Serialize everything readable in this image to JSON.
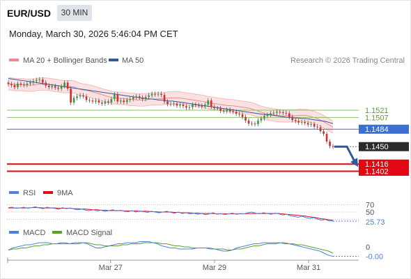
{
  "header": {
    "symbol": "EUR/USD",
    "timeframe": "30 MIN",
    "datetime": "Monday, March 30, 2026 5:46:04 PM CET"
  },
  "colors": {
    "candle_up": "#2f9e44",
    "candle_down": "#d32f2f",
    "ma20_band": "#f08a8a",
    "band_fill": "#fbe2e2",
    "ma50": "#2e5a9c",
    "resistance": "#8fc06a",
    "pivot": "#3c6fd6",
    "support": "#e30613",
    "last_price_bg": "#2b2b2b",
    "rsi": "#4f7fdc",
    "rsi_ma": "#e30613",
    "macd": "#4f7fdc",
    "macd_signal": "#5aa02c",
    "arrow": "#2e5a9c"
  },
  "chart_data": [
    {
      "type": "candlestick",
      "panel": "price",
      "legend": [
        "MA 20 + Bollinger Bands",
        "MA 50"
      ],
      "credit": "Research © 2026 Trading Central",
      "y_range": [
        1.1385,
        1.16
      ],
      "levels": [
        {
          "value": 1.1521,
          "label": "1.1521",
          "kind": "resistance"
        },
        {
          "value": 1.1507,
          "label": "1.1507",
          "kind": "resistance"
        },
        {
          "value": 1.1484,
          "label": "1.1484",
          "kind": "pivot"
        },
        {
          "value": 1.1416,
          "label": "1.1416",
          "kind": "support"
        },
        {
          "value": 1.1402,
          "label": "1.1402",
          "kind": "support"
        }
      ],
      "last_price": {
        "value": 1.145,
        "label": "1.1450"
      },
      "forecast_target": 1.1416,
      "close": [
        1.1572,
        1.157,
        1.1566,
        1.1573,
        1.1571,
        1.157,
        1.1573,
        1.1575,
        1.1578,
        1.158,
        1.1581,
        1.1575,
        1.1569,
        1.1566,
        1.1568,
        1.1565,
        1.1563,
        1.1568,
        1.1575,
        1.1563,
        1.1536,
        1.1545,
        1.1548,
        1.155,
        1.1548,
        1.1541,
        1.154,
        1.1538,
        1.154,
        1.1536,
        1.1534,
        1.1538,
        1.1536,
        1.1543,
        1.1552,
        1.1538,
        1.154,
        1.1537,
        1.1541,
        1.1543,
        1.1546,
        1.1548,
        1.1546,
        1.1543,
        1.1547,
        1.155,
        1.1553,
        1.1552,
        1.1553,
        1.1551,
        1.1538,
        1.1533,
        1.1533,
        1.1534,
        1.153,
        1.1532,
        1.1529,
        1.1526,
        1.1527,
        1.1532,
        1.1531,
        1.153,
        1.1528,
        1.1532,
        1.154,
        1.1528,
        1.1525,
        1.1525,
        1.152,
        1.1519,
        1.1522,
        1.1519,
        1.1518,
        1.1514,
        1.1513,
        1.1508,
        1.1501,
        1.1495,
        1.1495,
        1.1494,
        1.1501,
        1.1505,
        1.151,
        1.1512,
        1.1515,
        1.1516,
        1.1518,
        1.1517,
        1.1516,
        1.1515,
        1.1508,
        1.1502,
        1.15,
        1.1497,
        1.1498,
        1.1496,
        1.1493,
        1.1494,
        1.1489,
        1.1488,
        1.148,
        1.1475,
        1.146,
        1.1451,
        1.145
      ],
      "ma20": [
        1.1573,
        1.1572,
        1.1571,
        1.1571,
        1.1571,
        1.157,
        1.157,
        1.157,
        1.1571,
        1.1572,
        1.1572,
        1.1572,
        1.1571,
        1.157,
        1.1569,
        1.1568,
        1.1567,
        1.1567,
        1.1567,
        1.1566,
        1.1563,
        1.1561,
        1.156,
        1.1559,
        1.1557,
        1.1555,
        1.1553,
        1.1551,
        1.1549,
        1.1547,
        1.1545,
        1.1545,
        1.1544,
        1.1544,
        1.1543,
        1.1542,
        1.1542,
        1.1541,
        1.1541,
        1.1541,
        1.1542,
        1.1543,
        1.1543,
        1.1543,
        1.1544,
        1.1544,
        1.1545,
        1.1545,
        1.1545,
        1.1545,
        1.1544,
        1.1543,
        1.1542,
        1.1541,
        1.154,
        1.1539,
        1.1538,
        1.1536,
        1.1535,
        1.1534,
        1.1533,
        1.1532,
        1.1531,
        1.153,
        1.153,
        1.1529,
        1.1528,
        1.1527,
        1.1526,
        1.1525,
        1.1523,
        1.1521,
        1.1518,
        1.1516,
        1.1514,
        1.1513,
        1.1512,
        1.1511,
        1.151,
        1.151,
        1.151,
        1.151,
        1.151,
        1.1511,
        1.1511,
        1.1511,
        1.151,
        1.1508,
        1.1506,
        1.1503,
        1.15,
        1.1496,
        1.1492,
        1.1488
      ],
      "bb_width": 0.0012,
      "ma50": [
        1.1583,
        1.1582,
        1.1581,
        1.158,
        1.1579,
        1.1578,
        1.1577,
        1.1576,
        1.1575,
        1.1574,
        1.1573,
        1.1572,
        1.1571,
        1.157,
        1.1569,
        1.1568,
        1.1567,
        1.1566,
        1.1565,
        1.1564,
        1.1563,
        1.1562,
        1.1561,
        1.156,
        1.1559,
        1.1558,
        1.1557,
        1.1556,
        1.1555,
        1.1554,
        1.1553,
        1.1552,
        1.1551,
        1.155,
        1.1549,
        1.1548,
        1.1547,
        1.1546,
        1.1545,
        1.1544,
        1.1543,
        1.1543,
        1.1542,
        1.1541,
        1.1541,
        1.154,
        1.1539,
        1.1539,
        1.1538,
        1.1537,
        1.1536,
        1.1535,
        1.1534,
        1.1533,
        1.1532,
        1.1531,
        1.153,
        1.1529,
        1.1528,
        1.1527,
        1.1526,
        1.1525,
        1.1524,
        1.1523,
        1.1522,
        1.1521,
        1.152,
        1.1519,
        1.1518,
        1.1517,
        1.1516,
        1.1515,
        1.1514,
        1.1513,
        1.1512,
        1.1512,
        1.1511,
        1.151,
        1.1509,
        1.1508,
        1.1507,
        1.1507,
        1.1506,
        1.1506,
        1.1505,
        1.1505,
        1.1504,
        1.1503,
        1.1502,
        1.1501,
        1.15,
        1.1499,
        1.1497,
        1.1495
      ]
    },
    {
      "type": "line",
      "panel": "rsi",
      "legend": [
        "RSI",
        "9MA"
      ],
      "y_range": [
        20,
        80
      ],
      "y_ticks": [
        {
          "value": 70,
          "label": "70"
        },
        {
          "value": 50,
          "label": "50"
        },
        {
          "value": 30,
          "label": ""
        }
      ],
      "last_value": {
        "value": 25.73,
        "label": "25.73"
      },
      "rsi": [
        62,
        63,
        60,
        61,
        63,
        60,
        62,
        64,
        61,
        59,
        63,
        61,
        60,
        57,
        62,
        59,
        61,
        58,
        56,
        58,
        55,
        54,
        56,
        53,
        55,
        52,
        54,
        56,
        53,
        55,
        52,
        51,
        54,
        50,
        53,
        51,
        49,
        52,
        50,
        48,
        50,
        52,
        49,
        47,
        50,
        46,
        48,
        45,
        47,
        44,
        46,
        43,
        45,
        48,
        44,
        46,
        43,
        45,
        47,
        44,
        46,
        45,
        48,
        50,
        47,
        45,
        48,
        46,
        44,
        47,
        45,
        42,
        44,
        40,
        38,
        36,
        39,
        35,
        33,
        35,
        31,
        28,
        30,
        26,
        25.73
      ],
      "rsi_ma": [
        61,
        61,
        61,
        61,
        61,
        61,
        62,
        62,
        62,
        61,
        61,
        61,
        61,
        60,
        60,
        60,
        60,
        59,
        59,
        58,
        58,
        57,
        56,
        56,
        55,
        55,
        54,
        54,
        54,
        54,
        53,
        53,
        53,
        53,
        52,
        52,
        52,
        51,
        51,
        50,
        50,
        50,
        50,
        49,
        49,
        48,
        48,
        48,
        47,
        47,
        46,
        46,
        46,
        46,
        45,
        45,
        45,
        45,
        45,
        45,
        45,
        45,
        46,
        46,
        46,
        46,
        46,
        46,
        46,
        46,
        46,
        45,
        44,
        43,
        42,
        41,
        40,
        39,
        37,
        36,
        34,
        32,
        31,
        29,
        28
      ]
    },
    {
      "type": "line",
      "panel": "macd",
      "legend": [
        "MACD",
        "MACD Signal"
      ],
      "y_range": [
        -0.0012,
        0.0008
      ],
      "y_ticks": [
        {
          "value": 0,
          "label": "0"
        }
      ],
      "last_value": {
        "value": -0.0009,
        "label": "-0.00"
      },
      "macd": [
        -0.0003,
        -0.0001,
        0.0,
        0.0001,
        0.0002,
        0.0002,
        0.0003,
        0.0004,
        0.0004,
        0.0004,
        0.0003,
        0.0003,
        0.0004,
        0.0004,
        0.0003,
        0.0004,
        0.0004,
        0.0004,
        0.0003,
        0.0001,
        -0.0001,
        -0.0001,
        0.0,
        0.0001,
        0.0002,
        0.0003,
        0.0003,
        0.0004,
        0.0004,
        0.0004,
        0.0005,
        0.0005,
        0.0005,
        0.0004,
        0.0003,
        0.0001,
        0.0,
        -0.0001,
        -0.0001,
        -0.0002,
        -0.0002,
        -0.0002,
        -0.0002,
        -0.0001,
        -0.0001,
        -0.0001,
        -0.0002,
        -0.0002,
        -0.0003,
        -0.0004,
        -0.0004,
        -0.0003,
        -0.0001,
        0.0,
        0.0001,
        0.0002,
        0.0003,
        0.0003,
        0.0004,
        0.0004,
        0.0004,
        0.0004,
        0.0004,
        0.0003,
        0.0003,
        0.0002,
        0.0001,
        0.0,
        -0.0001,
        -0.0002,
        -0.0003,
        -0.0004,
        -0.0006,
        -0.0008,
        -0.0009
      ],
      "signal": [
        -0.0003,
        -0.0002,
        -0.0002,
        -0.0001,
        -0.0001,
        0.0,
        0.0001,
        0.0001,
        0.0002,
        0.0002,
        0.0003,
        0.0003,
        0.0003,
        0.0003,
        0.0003,
        0.0003,
        0.0003,
        0.0004,
        0.0004,
        0.0003,
        0.0002,
        0.0002,
        0.0001,
        0.0001,
        0.0001,
        0.0001,
        0.0002,
        0.0002,
        0.0003,
        0.0003,
        0.0003,
        0.0004,
        0.0004,
        0.0004,
        0.0004,
        0.0003,
        0.0003,
        0.0002,
        0.0001,
        0.0001,
        0.0,
        0.0,
        -0.0001,
        -0.0001,
        -0.0001,
        -0.0001,
        -0.0001,
        -0.0002,
        -0.0002,
        -0.0002,
        -0.0003,
        -0.0003,
        -0.0002,
        -0.0002,
        -0.0001,
        0.0,
        0.0001,
        0.0001,
        0.0002,
        0.0003,
        0.0003,
        0.0003,
        0.0004,
        0.0004,
        0.0003,
        0.0003,
        0.0002,
        0.0002,
        0.0001,
        0.0,
        -0.0001,
        -0.0002,
        -0.0003,
        -0.0004,
        -0.0006
      ]
    }
  ],
  "x_axis": {
    "ticks": [
      {
        "label": "Mar 27",
        "pos": 0.315
      },
      {
        "label": "Mar 29",
        "pos": 0.635
      },
      {
        "label": "Mar 31",
        "pos": 0.925
      }
    ]
  }
}
